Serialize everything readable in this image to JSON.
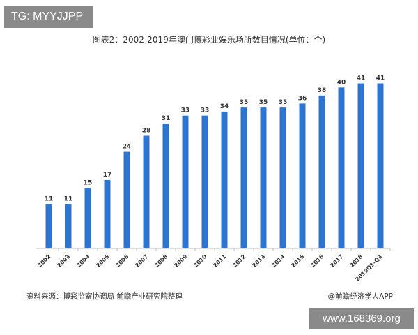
{
  "tag": "TG: MYYJJPP",
  "source": "资料来源：博彩监察协调局 前瞻产业研究院整理",
  "brand": "@前瞻经济学人APP",
  "site": "www.168369.org",
  "colors": {
    "bar": "#2e75d2",
    "axis": "#bfbfbf",
    "label": "#333333"
  },
  "chart_data": {
    "type": "bar",
    "title": "图表2：2002-2019年澳门博彩业娱乐场所数目情况(单位：个)",
    "categories": [
      "2002",
      "2003",
      "2004",
      "2005",
      "2006",
      "2007",
      "2008",
      "2009",
      "2010",
      "2011",
      "2012",
      "2013",
      "2014",
      "2015",
      "2016",
      "2017",
      "2018",
      "2019Q1-Q3"
    ],
    "values": [
      11,
      11,
      15,
      17,
      24,
      28,
      31,
      33,
      33,
      34,
      35,
      35,
      35,
      36,
      38,
      40,
      41,
      41
    ],
    "ylim": [
      0,
      43
    ],
    "grid": false,
    "legend": "none"
  }
}
